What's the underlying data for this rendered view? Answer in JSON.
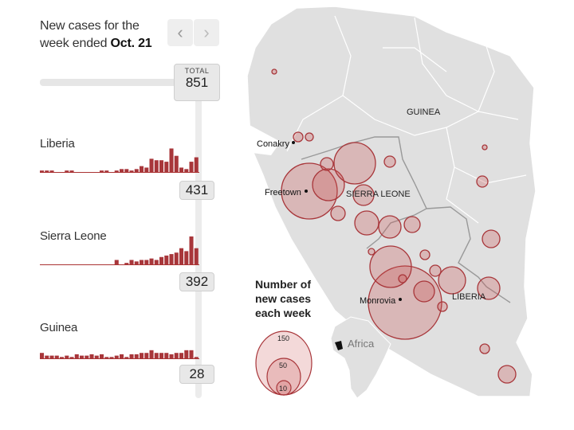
{
  "header": {
    "title_line1": "New cases for the",
    "title_line2_prefix": "week ended ",
    "title_line2_date": "Oct. 21"
  },
  "nav": {
    "prev_icon": "chevron-left-icon",
    "next_icon": "chevron-right-icon",
    "prev_glyph": "‹",
    "next_glyph": "›"
  },
  "total": {
    "label": "TOTAL",
    "value": "851"
  },
  "countries": [
    {
      "name": "Liberia",
      "count": "431",
      "weekly": [
        1,
        1,
        1,
        0,
        0,
        1,
        1,
        0,
        0,
        0,
        0,
        0,
        1,
        1,
        0,
        1,
        2,
        2,
        1,
        2,
        4,
        3,
        9,
        8,
        8,
        7,
        16,
        11,
        3,
        2,
        7,
        10
      ]
    },
    {
      "name": "Sierra Leone",
      "count": "392",
      "weekly": [
        0,
        0,
        0,
        0,
        0,
        0,
        0,
        0,
        0,
        0,
        0,
        0,
        0,
        0,
        0,
        3,
        0,
        1,
        3,
        2,
        3,
        3,
        4,
        3,
        5,
        6,
        7,
        8,
        11,
        9,
        19,
        11
      ]
    },
    {
      "name": "Guinea",
      "count": "28",
      "weekly": [
        4,
        2,
        2,
        2,
        1,
        2,
        1,
        3,
        2,
        2,
        3,
        2,
        3,
        1,
        1,
        2,
        3,
        1,
        3,
        3,
        4,
        4,
        6,
        4,
        4,
        4,
        3,
        4,
        4,
        6,
        6,
        1
      ]
    }
  ],
  "map_labels": {
    "conakry": "Conakry",
    "freetown": "Freetown",
    "monrovia": "Monrovia",
    "guinea": "GUINEA",
    "sierra_leone": "SIERRA LEONE",
    "liberia": "LIBERIA",
    "africa": "Africa"
  },
  "legend": {
    "title": "Number of new cases each week",
    "sizes": [
      "150",
      "50",
      "10"
    ]
  },
  "colors": {
    "accent": "#a8363a",
    "bubble_fill": "rgba(200,80,80,0.28)",
    "land": "#e0e0e0"
  }
}
